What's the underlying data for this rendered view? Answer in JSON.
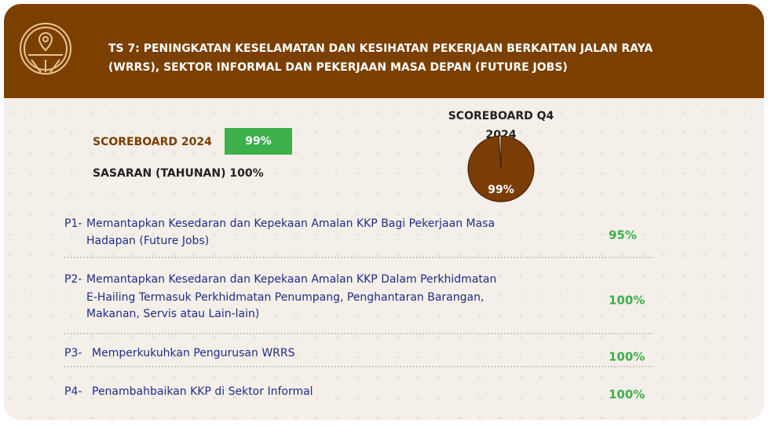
{
  "header": {
    "title": [
      "TS 7: PENINGKATAN KESELAMATAN DAN KESIHATAN PEKERJAAN BERKAITAN JALAN RAYA",
      "(WRRS), SEKTOR INFORMAL DAN PEKERJAAN MASA DEPAN (FUTURE JOBS)"
    ]
  },
  "scoreboard": {
    "label": "SCOREBOARD 2024",
    "value": "99%",
    "target": "SASARAN (TAHUNAN) 100%"
  },
  "chart_data": {
    "type": "pie",
    "title": [
      "SCOREBOARD Q4",
      "2024"
    ],
    "values": [
      99,
      1
    ],
    "value_labels": [
      "99%",
      null
    ],
    "colors": [
      "#7a3d06",
      "#f4eee8"
    ]
  },
  "items": [
    {
      "code": "P1-",
      "text": [
        "Memantapkan Kesedaran dan Kepekaan Amalan KKP Bagi Pekerjaan Masa",
        "Hadapan (Future Jobs)"
      ],
      "value": "95%"
    },
    {
      "code": "P2-",
      "text": [
        "Memantapkan Kesedaran dan Kepekaan Amalan KKP Dalam Perkhidmatan",
        "E-Hailing Termasuk Perkhidmatan Penumpang, Penghantaran Barangan,",
        "Makanan, Servis atau Lain-lain)"
      ],
      "value": "100%"
    },
    {
      "code": "P3-",
      "text": [
        "Memperkukuhkan Pengurusan WRRS"
      ],
      "value": "100%"
    },
    {
      "code": "P4-",
      "text": [
        "Penambahbaikan KKP di Sektor Informal"
      ],
      "value": "100%"
    }
  ]
}
